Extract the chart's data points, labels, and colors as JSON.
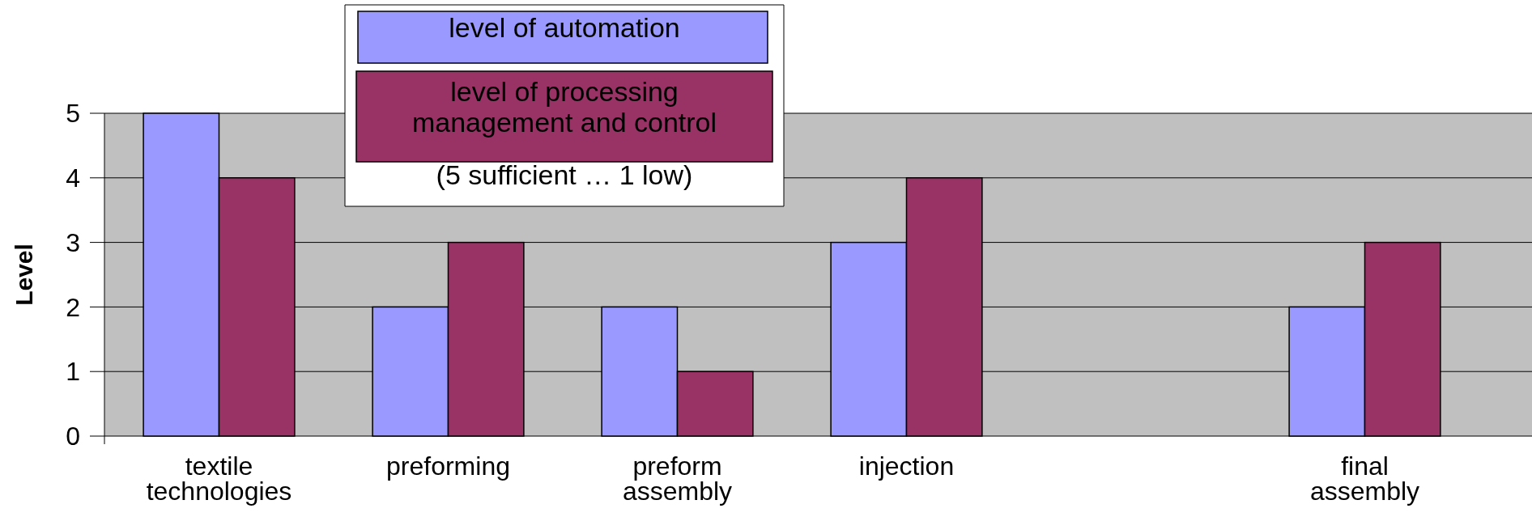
{
  "chart_data": {
    "type": "bar",
    "ylabel": "Level",
    "categories": [
      "textile technologies",
      "preforming",
      "preform assembly",
      "injection",
      null,
      "final assembly"
    ],
    "series": [
      {
        "name": "level of automation",
        "color": "#9999ff",
        "values": [
          5,
          2,
          2,
          3,
          null,
          2
        ]
      },
      {
        "name": "level of processing management and control",
        "color": "#993366",
        "values": [
          4,
          3,
          1,
          4,
          null,
          3
        ]
      }
    ],
    "ylim": [
      0,
      5
    ],
    "yticks": [
      0,
      1,
      2,
      3,
      4,
      5
    ],
    "grid": "y",
    "legend": "top left",
    "annotations": [
      "(5 sufficient … 1 low)"
    ]
  }
}
